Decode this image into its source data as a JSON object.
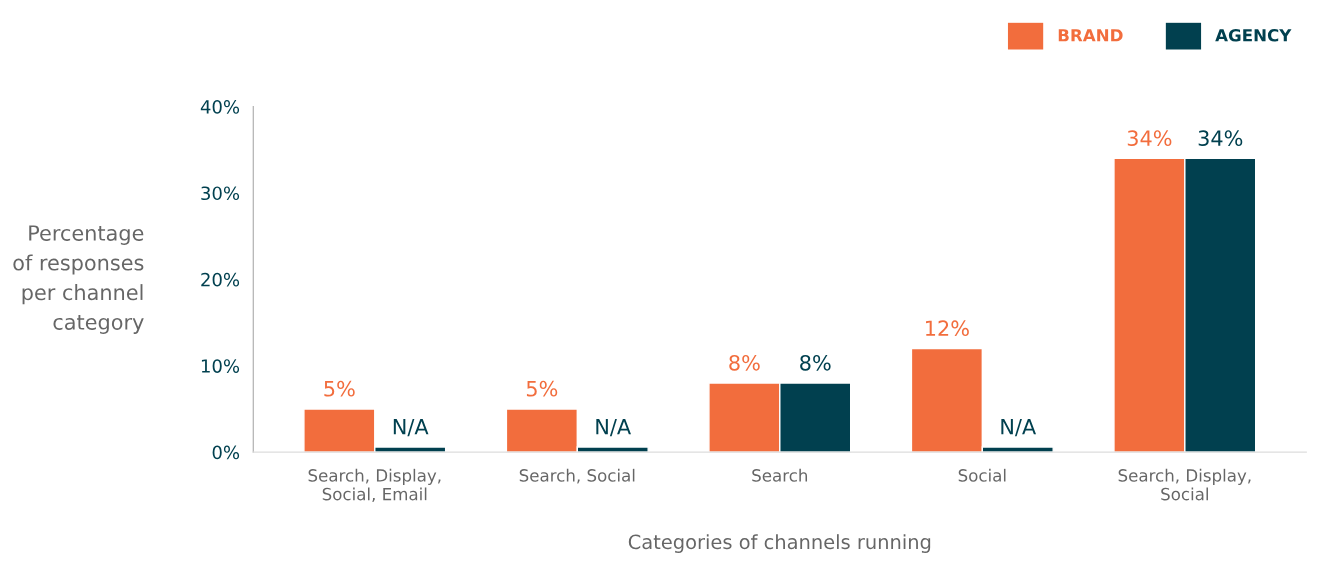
{
  "chart_data": {
    "type": "bar",
    "xlabel": "Categories of channels running",
    "ylabel": "Percentage\nof responses\nper channel\ncategory",
    "categories": [
      "Search, Display,\nSocial, Email",
      "Search, Social",
      "Search",
      "Social",
      "Search, Display,\nSocial"
    ],
    "series": [
      {
        "name": "BRAND",
        "color": "#f26d3d",
        "values": [
          5,
          5,
          8,
          12,
          34
        ],
        "value_labels": [
          "5%",
          "5%",
          "8%",
          "12%",
          "34%"
        ]
      },
      {
        "name": "AGENCY",
        "color": "#01404f",
        "values": [
          0.6,
          0.6,
          8,
          0.6,
          34
        ],
        "value_labels": [
          "N/A",
          "N/A",
          "8%",
          "N/A",
          "34%"
        ]
      }
    ],
    "ylim": [
      0,
      40
    ],
    "yticks": [
      {
        "value": 0,
        "label": "0%"
      },
      {
        "value": 10,
        "label": "10%"
      },
      {
        "value": 20,
        "label": "20%"
      },
      {
        "value": 30,
        "label": "30%"
      },
      {
        "value": 40,
        "label": "40%"
      }
    ],
    "grid": false,
    "legend": "top right"
  }
}
